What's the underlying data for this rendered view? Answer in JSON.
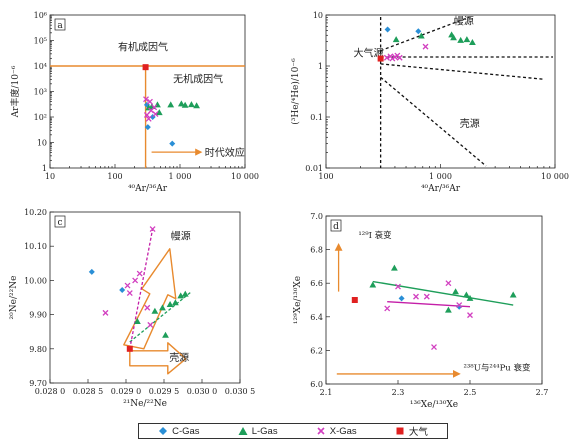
{
  "chart_data": [
    {
      "id": "a",
      "type": "scatter",
      "panel_label": "a",
      "xscale": "log",
      "yscale": "log",
      "xlim": [
        10,
        10000
      ],
      "ylim": [
        1,
        1000000
      ],
      "x_ticks": [
        10,
        100,
        1000,
        10000
      ],
      "x_tick_labels": [
        "10",
        "100",
        "1 000",
        "10 000"
      ],
      "y_ticks": [
        1,
        10,
        100,
        1000,
        10000,
        100000,
        1000000
      ],
      "y_tick_labels": [
        "1",
        "10",
        "10²",
        "10³",
        "10⁴",
        "10⁵",
        "10⁶"
      ],
      "xlabel": "⁴⁰Ar/³⁶Ar",
      "ylabel": "Ar丰度/10⁻⁶",
      "annotations": [
        {
          "text": "有机成因气",
          "x": 270,
          "y": 40000
        },
        {
          "text": "无机成因气",
          "x": 1900,
          "y": 2300
        },
        {
          "text": "时代效应",
          "x": 2400,
          "y": 4.2
        }
      ],
      "ref_lines": {
        "hline_y": 10000,
        "vline_x": 295.5
      },
      "series": [
        {
          "name": "C-Gas",
          "points": [
            [
              310,
              300
            ],
            [
              320,
              40
            ],
            [
              380,
              100
            ],
            [
              760,
              9
            ]
          ]
        },
        {
          "name": "L-Gas",
          "points": [
            [
              330,
              230
            ],
            [
              370,
              260
            ],
            [
              450,
              300
            ],
            [
              480,
              150
            ],
            [
              720,
              300
            ],
            [
              1050,
              330
            ],
            [
              1200,
              290
            ],
            [
              1500,
              310
            ],
            [
              1800,
              280
            ]
          ]
        },
        {
          "name": "X-Gas",
          "points": [
            [
              300,
              500
            ],
            [
              310,
              120
            ],
            [
              330,
              85
            ],
            [
              345,
              400
            ],
            [
              360,
              180
            ],
            [
              400,
              240
            ],
            [
              420,
              130
            ]
          ]
        },
        {
          "name": "大气",
          "points": [
            [
              295.5,
              9000
            ]
          ]
        }
      ]
    },
    {
      "id": "b",
      "type": "scatter",
      "panel_label": "",
      "xscale": "log",
      "yscale": "log",
      "xlim": [
        100,
        10000
      ],
      "ylim": [
        0.01,
        10
      ],
      "x_ticks": [
        100,
        1000,
        10000
      ],
      "x_tick_labels": [
        "100",
        "1 000",
        "10 000"
      ],
      "y_ticks": [
        0.01,
        0.1,
        1,
        10
      ],
      "y_tick_labels": [
        "0.01",
        "0.1",
        "1",
        "10"
      ],
      "xlabel": "⁴⁰Ar/³⁶Ar",
      "ylabel": "(³He/⁴He)/10⁻⁶",
      "annotations": [
        {
          "text": "幔源",
          "x": 1600,
          "y": 6.5
        },
        {
          "text": "大气源",
          "x": 235,
          "y": 1.85
        },
        {
          "text": "壳源",
          "x": 1800,
          "y": 0.064
        }
      ],
      "series": [
        {
          "name": "C-Gas",
          "points": [
            [
              345,
              5.2
            ],
            [
              640,
              4.8
            ]
          ]
        },
        {
          "name": "L-Gas",
          "points": [
            [
              410,
              3.3
            ],
            [
              680,
              3.9
            ],
            [
              1250,
              4.1
            ],
            [
              1300,
              3.6
            ],
            [
              1500,
              3.2
            ],
            [
              1700,
              3.3
            ],
            [
              1900,
              2.9
            ]
          ]
        },
        {
          "name": "X-Gas",
          "points": [
            [
              340,
              1.45
            ],
            [
              365,
              1.55
            ],
            [
              380,
              1.4
            ],
            [
              400,
              1.5
            ],
            [
              420,
              1.6
            ],
            [
              440,
              1.45
            ],
            [
              740,
              2.4
            ]
          ]
        },
        {
          "name": "大气",
          "points": [
            [
              300,
              1.4
            ]
          ]
        }
      ]
    },
    {
      "id": "c",
      "type": "scatter",
      "panel_label": "c",
      "xlim": [
        0.028,
        0.0305
      ],
      "ylim": [
        9.7,
        10.2
      ],
      "x_ticks": [
        0.028,
        0.0285,
        0.029,
        0.0295,
        0.03,
        0.0305
      ],
      "x_tick_labels": [
        "0.028 0",
        "0.028 5",
        "0.029 0",
        "0.029 5",
        "0.030 0",
        "0.030 5"
      ],
      "y_ticks": [
        9.7,
        9.8,
        9.9,
        10.0,
        10.1,
        10.2
      ],
      "y_tick_labels": [
        "9.70",
        "9.80",
        "9.90",
        "10.00",
        "10.10",
        "10.20"
      ],
      "xlabel": "²¹Ne/²²Ne",
      "ylabel": "²⁰Ne/²²Ne",
      "annotations": [
        {
          "text": "幔源",
          "x": 0.02972,
          "y": 10.12
        },
        {
          "text": "壳源",
          "x": 0.0297,
          "y": 9.765
        }
      ],
      "series": [
        {
          "name": "C-Gas",
          "points": [
            [
              0.02855,
              10.025
            ],
            [
              0.02895,
              9.972
            ]
          ]
        },
        {
          "name": "L-Gas",
          "points": [
            [
              0.02915,
              9.88
            ],
            [
              0.02938,
              9.91
            ],
            [
              0.02948,
              9.92
            ],
            [
              0.02958,
              9.93
            ],
            [
              0.02965,
              9.935
            ],
            [
              0.02972,
              9.955
            ],
            [
              0.02978,
              9.96
            ],
            [
              0.02952,
              9.84
            ]
          ]
        },
        {
          "name": "X-Gas",
          "points": [
            [
              0.02873,
              9.905
            ],
            [
              0.02902,
              9.985
            ],
            [
              0.02905,
              9.963
            ],
            [
              0.02912,
              10.0
            ],
            [
              0.02918,
              10.02
            ],
            [
              0.02928,
              9.92
            ],
            [
              0.02932,
              9.87
            ],
            [
              0.02935,
              10.15
            ]
          ]
        },
        {
          "name": "大气",
          "points": [
            [
              0.02905,
              9.8
            ]
          ]
        }
      ],
      "trend_lines": [
        {
          "series": "L-Gas",
          "from": [
            0.02905,
            9.82
          ],
          "to": [
            0.02985,
            9.965
          ]
        },
        {
          "series": "X-Gas",
          "from": [
            0.02905,
            9.8
          ],
          "to": [
            0.02935,
            10.15
          ]
        }
      ]
    },
    {
      "id": "d",
      "type": "scatter",
      "panel_label": "d",
      "xlim": [
        2.1,
        2.7
      ],
      "ylim": [
        6.0,
        7.0
      ],
      "x_ticks": [
        2.1,
        2.3,
        2.5,
        2.7
      ],
      "x_tick_labels": [
        "2.1",
        "2.3",
        "2.5",
        "2.7"
      ],
      "y_ticks": [
        6.0,
        6.2,
        6.4,
        6.6,
        6.8,
        7.0
      ],
      "y_tick_labels": [
        "6.0",
        "6.2",
        "6.4",
        "6.6",
        "6.8",
        "7.0"
      ],
      "xlabel": "¹³⁶Xe/¹³⁰Xe",
      "ylabel": "¹²⁹Xe/¹³⁰Xe",
      "annotations": [
        {
          "text": "¹²⁹I 衰变",
          "x": 2.19,
          "y": 6.87
        },
        {
          "text": "²³⁸U与²⁴⁴Pu 衰变",
          "x": 2.575,
          "y": 6.08
        }
      ],
      "series": [
        {
          "name": "C-Gas",
          "points": [
            [
              2.31,
              6.51
            ],
            [
              2.47,
              6.46
            ]
          ]
        },
        {
          "name": "L-Gas",
          "points": [
            [
              2.23,
              6.59
            ],
            [
              2.29,
              6.69
            ],
            [
              2.44,
              6.44
            ],
            [
              2.46,
              6.55
            ],
            [
              2.49,
              6.53
            ],
            [
              2.5,
              6.51
            ],
            [
              2.62,
              6.53
            ]
          ]
        },
        {
          "name": "X-Gas",
          "points": [
            [
              2.27,
              6.45
            ],
            [
              2.3,
              6.58
            ],
            [
              2.35,
              6.52
            ],
            [
              2.38,
              6.52
            ],
            [
              2.4,
              6.22
            ],
            [
              2.44,
              6.6
            ],
            [
              2.47,
              6.47
            ],
            [
              2.5,
              6.41
            ]
          ]
        },
        {
          "name": "大气",
          "points": [
            [
              2.18,
              6.5
            ]
          ]
        }
      ],
      "trend_lines": [
        {
          "series": "L-Gas",
          "from": [
            2.23,
            6.61
          ],
          "to": [
            2.62,
            6.47
          ]
        },
        {
          "series": "X-Gas",
          "from": [
            2.27,
            6.49
          ],
          "to": [
            2.5,
            6.46
          ]
        }
      ]
    }
  ],
  "legend": {
    "items": [
      {
        "label": "C-Gas",
        "marker": "diamond",
        "color": "#2a8fd6"
      },
      {
        "label": "L-Gas",
        "marker": "triangle",
        "color": "#1e9e5a"
      },
      {
        "label": "X-Gas",
        "marker": "x",
        "color": "#d23fc0"
      },
      {
        "label": "大气",
        "marker": "square",
        "color": "#e02020"
      }
    ]
  },
  "colors": {
    "C-Gas": "#2a8fd6",
    "L-Gas": "#1e9e5a",
    "X-Gas": "#d23fc0",
    "大气": "#e02020",
    "orange": "#e88a2e",
    "axis": "#222222",
    "green_line": "#1e9e5a",
    "magenta_line": "#c41fa8"
  }
}
